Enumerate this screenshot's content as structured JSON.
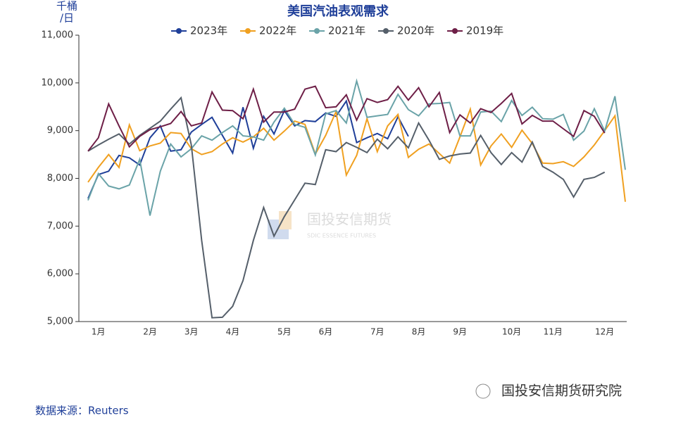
{
  "chart_data": {
    "type": "line",
    "title": "美国汽油表观需求",
    "y_label": [
      "千桶",
      "/日"
    ],
    "categories": [
      null,
      "1月",
      null,
      null,
      null,
      null,
      "2月",
      null,
      null,
      null,
      "3月",
      null,
      null,
      null,
      "4月",
      null,
      null,
      null,
      null,
      "5月",
      null,
      null,
      null,
      "6月",
      null,
      null,
      null,
      null,
      "7月",
      null,
      null,
      null,
      "8月",
      null,
      null,
      null,
      "9月",
      null,
      null,
      null,
      null,
      "10月",
      null,
      null,
      null,
      "11月",
      null,
      null,
      null,
      null,
      "12月",
      null,
      null
    ],
    "ylim": [
      5000,
      11000
    ],
    "yticks": [
      {
        "value": 5000,
        "label": "5,000"
      },
      {
        "value": 6000,
        "label": "6,000"
      },
      {
        "value": 7000,
        "label": "7,000"
      },
      {
        "value": 8000,
        "label": "8,000"
      },
      {
        "value": 9000,
        "label": "9,000"
      },
      {
        "value": 10000,
        "label": "10,000"
      },
      {
        "value": 11000,
        "label": "11,000"
      }
    ],
    "series": [
      {
        "name": "2023年",
        "color": "#1f3f99",
        "values": [
          7580,
          8080,
          8150,
          8480,
          8430,
          8280,
          8850,
          9100,
          8570,
          8600,
          8970,
          9130,
          9280,
          8900,
          8530,
          9490,
          8630,
          9300,
          8930,
          9420,
          9100,
          9210,
          9190,
          9370,
          9300,
          9620,
          8750,
          8850,
          8940,
          8830,
          9290,
          8880,
          null,
          null,
          null,
          null,
          null,
          null,
          null,
          null,
          null,
          null,
          null,
          null,
          null,
          null,
          null,
          null,
          null,
          null,
          null,
          null,
          null
        ]
      },
      {
        "name": "2022年",
        "color": "#f0a020",
        "values": [
          7920,
          8230,
          8500,
          8230,
          9120,
          8580,
          8680,
          8740,
          8960,
          8940,
          8620,
          8500,
          8560,
          8720,
          8850,
          8760,
          8870,
          9050,
          8800,
          8990,
          9200,
          9130,
          8510,
          8900,
          9400,
          8070,
          8480,
          9250,
          8560,
          9100,
          9340,
          8440,
          8610,
          8720,
          8520,
          8320,
          8870,
          9450,
          8280,
          8680,
          8930,
          8650,
          9010,
          8730,
          8320,
          8310,
          8350,
          8250,
          8450,
          8700,
          9000,
          9310,
          7510
        ]
      },
      {
        "name": "2021年",
        "color": "#6aa3a8",
        "values": [
          7540,
          8100,
          7840,
          7780,
          7860,
          8400,
          7220,
          8150,
          8720,
          8450,
          8620,
          8890,
          8800,
          8960,
          9100,
          8890,
          8870,
          8800,
          9180,
          9470,
          9130,
          9070,
          8490,
          9350,
          9420,
          9160,
          10040,
          9280,
          9310,
          9340,
          9760,
          9440,
          9310,
          9560,
          9570,
          9590,
          8890,
          8890,
          9390,
          9410,
          9190,
          9630,
          9320,
          9490,
          9250,
          9240,
          9340,
          8800,
          8990,
          9460,
          8990,
          9720,
          8180
        ]
      },
      {
        "name": "2020年",
        "color": "#555f6a",
        "values": [
          8570,
          8700,
          8820,
          8930,
          8720,
          8900,
          9050,
          9200,
          9450,
          9690,
          8700,
          6700,
          5080,
          5090,
          5320,
          5860,
          6700,
          7390,
          6790,
          7200,
          7550,
          7900,
          7870,
          8600,
          8560,
          8750,
          8650,
          8540,
          8820,
          8620,
          8870,
          8640,
          9160,
          8800,
          8400,
          8470,
          8510,
          8530,
          8900,
          8540,
          8290,
          8540,
          8340,
          8760,
          8250,
          8130,
          7980,
          7610,
          7980,
          8020,
          8130,
          null,
          null
        ]
      },
      {
        "name": "2019年",
        "color": "#6e1f47",
        "values": [
          8570,
          8850,
          9560,
          9100,
          8660,
          8880,
          9020,
          9080,
          9150,
          9400,
          9100,
          9160,
          9810,
          9430,
          9420,
          9250,
          9870,
          9180,
          9390,
          9390,
          9450,
          9870,
          9930,
          9480,
          9500,
          9750,
          9220,
          9670,
          9590,
          9650,
          9930,
          9640,
          9900,
          9500,
          9800,
          8960,
          9330,
          9160,
          9460,
          9380,
          9570,
          9780,
          9140,
          9320,
          9200,
          9200,
          9040,
          8880,
          9420,
          9300,
          8950,
          null,
          null
        ]
      }
    ]
  },
  "watermark": {
    "name": "国投安信期货",
    "english": "SDIC ESSENCE FUTURES"
  },
  "source": "数据来源：Reuters",
  "brand": "国投安信期货研究院"
}
